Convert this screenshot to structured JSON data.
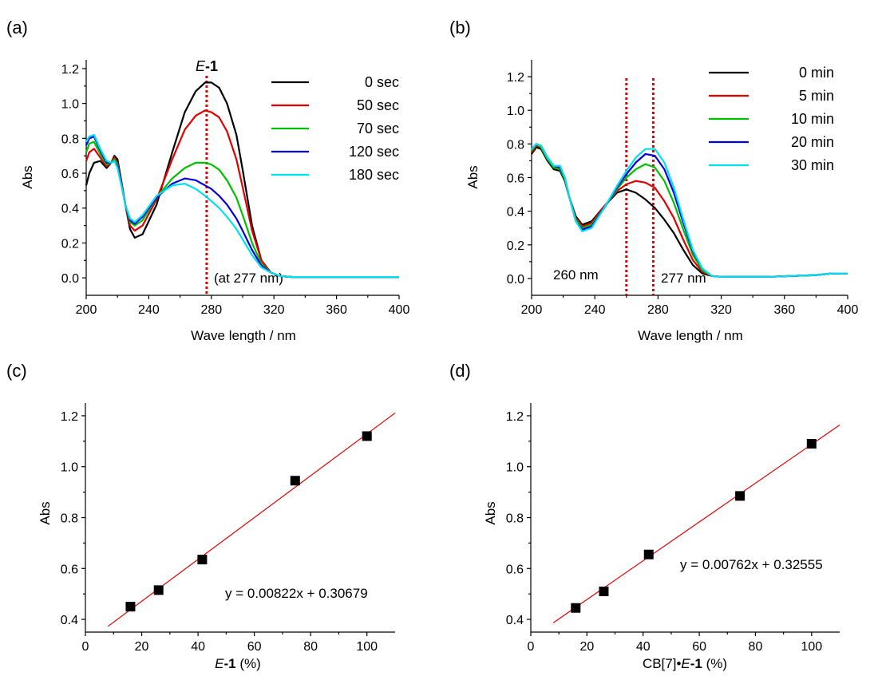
{
  "chart_data": [
    {
      "panel": "(a)",
      "type": "line",
      "xlabel": "Wave length / nm",
      "ylabel": "Abs",
      "xlim": [
        200,
        400
      ],
      "ylim": [
        -0.1,
        1.25
      ],
      "xticks": [
        "200",
        "240",
        "280",
        "320",
        "360",
        "400"
      ],
      "yticks": [
        "0.0",
        "0.2",
        "0.4",
        "0.6",
        "0.8",
        "1.0",
        "1.2"
      ],
      "marker_line": {
        "x": 277,
        "color": "#e00000"
      },
      "annotations": [
        {
          "text_italic": "E",
          "text": "-1",
          "bold": true
        },
        {
          "text": "(at 277 nm)"
        }
      ],
      "legend_placement": "top-right",
      "series": [
        {
          "name": "0 sec",
          "color": "#000000",
          "x": [
            200,
            202,
            205,
            209,
            213,
            216,
            218,
            220,
            222,
            225,
            228,
            231,
            236,
            245,
            255,
            263,
            270,
            276,
            280,
            285,
            290,
            296,
            300,
            306,
            312,
            318,
            324,
            332,
            350,
            380,
            400
          ],
          "y": [
            0.53,
            0.6,
            0.66,
            0.67,
            0.63,
            0.66,
            0.7,
            0.68,
            0.58,
            0.42,
            0.28,
            0.23,
            0.25,
            0.42,
            0.72,
            0.95,
            1.07,
            1.12,
            1.12,
            1.09,
            1.0,
            0.82,
            0.62,
            0.3,
            0.1,
            0.03,
            0.01,
            0.005,
            0.005,
            0.005,
            0.005
          ]
        },
        {
          "name": "50 sec",
          "color": "#e00000",
          "x": [
            200,
            202,
            205,
            209,
            213,
            216,
            218,
            220,
            222,
            225,
            228,
            231,
            236,
            245,
            255,
            263,
            270,
            276,
            280,
            285,
            290,
            296,
            300,
            306,
            312,
            318,
            324,
            332,
            350,
            380,
            400
          ],
          "y": [
            0.67,
            0.72,
            0.74,
            0.69,
            0.64,
            0.66,
            0.69,
            0.66,
            0.57,
            0.42,
            0.3,
            0.27,
            0.3,
            0.45,
            0.68,
            0.85,
            0.93,
            0.96,
            0.95,
            0.92,
            0.84,
            0.68,
            0.52,
            0.27,
            0.1,
            0.03,
            0.01,
            0.005,
            0.005,
            0.005,
            0.005
          ]
        },
        {
          "name": "70 sec",
          "color": "#00c000",
          "x": [
            200,
            202,
            205,
            209,
            213,
            216,
            218,
            220,
            222,
            225,
            228,
            231,
            236,
            245,
            255,
            263,
            270,
            276,
            280,
            285,
            290,
            296,
            300,
            306,
            312,
            318,
            324,
            332,
            350,
            380,
            400
          ],
          "y": [
            0.72,
            0.77,
            0.78,
            0.71,
            0.65,
            0.66,
            0.68,
            0.65,
            0.56,
            0.42,
            0.32,
            0.3,
            0.33,
            0.46,
            0.57,
            0.63,
            0.66,
            0.66,
            0.65,
            0.62,
            0.56,
            0.46,
            0.36,
            0.2,
            0.08,
            0.03,
            0.01,
            0.005,
            0.005,
            0.005,
            0.005
          ]
        },
        {
          "name": "120 sec",
          "color": "#0000e0",
          "x": [
            200,
            202,
            205,
            209,
            213,
            216,
            218,
            220,
            222,
            225,
            228,
            231,
            236,
            245,
            255,
            263,
            270,
            276,
            280,
            285,
            290,
            296,
            300,
            306,
            312,
            318,
            324,
            332,
            350,
            380,
            400
          ],
          "y": [
            0.76,
            0.8,
            0.81,
            0.73,
            0.66,
            0.66,
            0.67,
            0.64,
            0.56,
            0.42,
            0.33,
            0.31,
            0.35,
            0.46,
            0.54,
            0.57,
            0.56,
            0.53,
            0.51,
            0.47,
            0.42,
            0.34,
            0.27,
            0.16,
            0.07,
            0.03,
            0.01,
            0.005,
            0.005,
            0.005,
            0.005
          ]
        },
        {
          "name": "180 sec",
          "color": "#00e0f0",
          "x": [
            200,
            202,
            205,
            209,
            213,
            216,
            218,
            220,
            222,
            225,
            228,
            231,
            236,
            245,
            255,
            263,
            270,
            276,
            280,
            285,
            290,
            296,
            300,
            306,
            312,
            318,
            324,
            332,
            350,
            380,
            400
          ],
          "y": [
            0.78,
            0.81,
            0.82,
            0.74,
            0.67,
            0.66,
            0.67,
            0.63,
            0.55,
            0.42,
            0.34,
            0.32,
            0.36,
            0.47,
            0.53,
            0.54,
            0.51,
            0.47,
            0.44,
            0.4,
            0.35,
            0.28,
            0.22,
            0.13,
            0.06,
            0.03,
            0.01,
            0.005,
            0.005,
            0.005,
            0.005
          ]
        }
      ]
    },
    {
      "panel": "(b)",
      "type": "line",
      "xlabel": "Wave length / nm",
      "ylabel": "Abs",
      "xlim": [
        200,
        400
      ],
      "ylim": [
        -0.1,
        1.3
      ],
      "xticks": [
        "200",
        "240",
        "280",
        "320",
        "360",
        "400"
      ],
      "yticks": [
        "0.0",
        "0.2",
        "0.4",
        "0.6",
        "0.8",
        "1.0",
        "1.2"
      ],
      "marker_lines": [
        {
          "x": 260,
          "color": "#e00000"
        },
        {
          "x": 277,
          "color": "#e00000"
        }
      ],
      "annotations": [
        {
          "text": "260 nm"
        },
        {
          "text": "277 nm"
        }
      ],
      "legend_placement": "top-right",
      "series": [
        {
          "name": "0 min",
          "color": "#000000",
          "x": [
            200,
            203,
            206,
            210,
            214,
            218,
            221,
            224,
            228,
            232,
            238,
            246,
            254,
            260,
            266,
            272,
            278,
            284,
            290,
            296,
            302,
            308,
            314,
            320,
            330,
            350,
            380,
            390,
            400
          ],
          "y": [
            0.74,
            0.78,
            0.77,
            0.7,
            0.65,
            0.64,
            0.58,
            0.48,
            0.37,
            0.32,
            0.34,
            0.43,
            0.51,
            0.53,
            0.51,
            0.47,
            0.42,
            0.35,
            0.27,
            0.17,
            0.08,
            0.03,
            0.015,
            0.01,
            0.01,
            0.01,
            0.02,
            0.03,
            0.03
          ]
        },
        {
          "name": "5 min",
          "color": "#e00000",
          "x": [
            200,
            203,
            206,
            210,
            214,
            218,
            221,
            224,
            228,
            232,
            238,
            246,
            254,
            260,
            266,
            272,
            278,
            284,
            290,
            296,
            302,
            308,
            314,
            320,
            330,
            350,
            380,
            390,
            400
          ],
          "y": [
            0.75,
            0.79,
            0.78,
            0.71,
            0.66,
            0.65,
            0.59,
            0.48,
            0.36,
            0.31,
            0.33,
            0.43,
            0.52,
            0.56,
            0.58,
            0.57,
            0.54,
            0.46,
            0.36,
            0.23,
            0.11,
            0.04,
            0.015,
            0.01,
            0.01,
            0.01,
            0.02,
            0.03,
            0.03
          ]
        },
        {
          "name": "10 min",
          "color": "#00c000",
          "x": [
            200,
            203,
            206,
            210,
            214,
            218,
            221,
            224,
            228,
            232,
            238,
            246,
            254,
            260,
            266,
            272,
            278,
            284,
            290,
            296,
            302,
            308,
            314,
            320,
            330,
            350,
            380,
            390,
            400
          ],
          "y": [
            0.76,
            0.8,
            0.78,
            0.71,
            0.66,
            0.65,
            0.59,
            0.48,
            0.35,
            0.3,
            0.32,
            0.42,
            0.53,
            0.6,
            0.65,
            0.68,
            0.66,
            0.58,
            0.45,
            0.29,
            0.14,
            0.05,
            0.015,
            0.01,
            0.01,
            0.01,
            0.02,
            0.03,
            0.03
          ]
        },
        {
          "name": "20 min",
          "color": "#0000e0",
          "x": [
            200,
            203,
            206,
            210,
            214,
            218,
            221,
            224,
            228,
            232,
            238,
            246,
            254,
            260,
            266,
            272,
            278,
            284,
            290,
            296,
            302,
            308,
            314,
            320,
            330,
            350,
            380,
            390,
            400
          ],
          "y": [
            0.77,
            0.8,
            0.79,
            0.72,
            0.67,
            0.66,
            0.6,
            0.48,
            0.34,
            0.29,
            0.31,
            0.42,
            0.54,
            0.62,
            0.69,
            0.74,
            0.73,
            0.65,
            0.51,
            0.33,
            0.16,
            0.06,
            0.015,
            0.01,
            0.01,
            0.01,
            0.02,
            0.03,
            0.03
          ]
        },
        {
          "name": "30 min",
          "color": "#00e0f0",
          "x": [
            200,
            203,
            206,
            210,
            214,
            218,
            221,
            224,
            228,
            232,
            238,
            246,
            254,
            260,
            266,
            272,
            278,
            284,
            290,
            296,
            302,
            308,
            314,
            320,
            330,
            350,
            380,
            390,
            400
          ],
          "y": [
            0.77,
            0.8,
            0.79,
            0.72,
            0.67,
            0.67,
            0.6,
            0.48,
            0.34,
            0.28,
            0.3,
            0.42,
            0.55,
            0.64,
            0.72,
            0.77,
            0.77,
            0.69,
            0.54,
            0.35,
            0.17,
            0.06,
            0.015,
            0.01,
            0.01,
            0.01,
            0.02,
            0.03,
            0.03
          ]
        }
      ]
    },
    {
      "panel": "(c)",
      "type": "scatter",
      "xlabel_italic": "E",
      "xlabel_bold": "-1",
      "xlabel": " (%)",
      "ylabel": "Abs",
      "xlim": [
        0,
        110
      ],
      "ylim": [
        0.35,
        1.25
      ],
      "xticks": [
        "0",
        "20",
        "40",
        "60",
        "80",
        "100"
      ],
      "yticks": [
        "0.4",
        "0.6",
        "0.8",
        "1.0",
        "1.2"
      ],
      "points": {
        "x": [
          16,
          26,
          41.5,
          74.5,
          100
        ],
        "y": [
          0.45,
          0.515,
          0.635,
          0.945,
          1.12
        ]
      },
      "fit": {
        "slope": 0.00822,
        "intercept": 0.30679,
        "x_range": [
          8,
          110
        ],
        "color": "#e00000"
      },
      "equation": "y = 0.00822x + 0.30679"
    },
    {
      "panel": "(d)",
      "type": "scatter",
      "xlabel_prefix": "CB[7]•",
      "xlabel_italic": "E",
      "xlabel_bold": "-1",
      "xlabel": " (%)",
      "ylabel": "Abs",
      "xlim": [
        0,
        110
      ],
      "ylim": [
        0.35,
        1.25
      ],
      "xticks": [
        "0",
        "20",
        "40",
        "60",
        "80",
        "100"
      ],
      "yticks": [
        "0.4",
        "0.6",
        "0.8",
        "1.0",
        "1.2"
      ],
      "points": {
        "x": [
          16,
          26,
          42,
          74.5,
          100
        ],
        "y": [
          0.445,
          0.51,
          0.655,
          0.885,
          1.09
        ]
      },
      "fit": {
        "slope": 0.00762,
        "intercept": 0.32555,
        "x_range": [
          8,
          110
        ],
        "color": "#e00000"
      },
      "equation": "y = 0.00762x + 0.32555"
    }
  ]
}
